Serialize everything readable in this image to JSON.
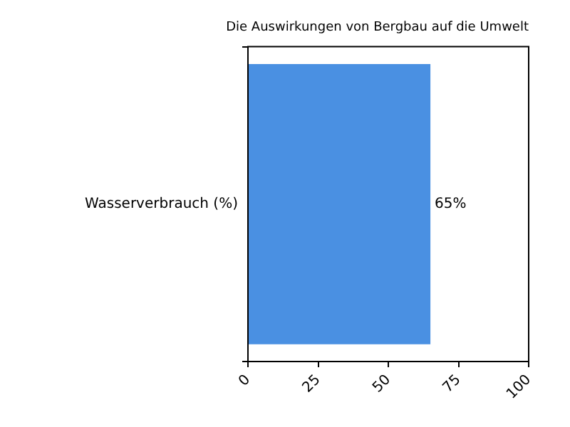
{
  "chart_data": {
    "type": "bar",
    "orientation": "horizontal",
    "title": "Die Auswirkungen von Bergbau auf die Umwelt",
    "categories": [
      "Wasserverbrauch (%)"
    ],
    "values": [
      65
    ],
    "value_labels": [
      "65%"
    ],
    "color": "#4a90e2",
    "xlim": [
      0,
      100
    ],
    "xticks": [
      0,
      25,
      50,
      75,
      100
    ],
    "grid": false,
    "legend": false
  }
}
